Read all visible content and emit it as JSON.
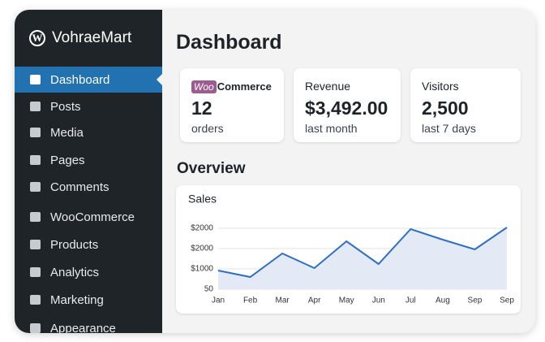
{
  "sidebar": {
    "site_name": "VohraeMart",
    "items": [
      "Dashboard",
      "Posts",
      "Media",
      "Pages",
      "Comments",
      "WooCommerce",
      "Products",
      "Analytics",
      "Marketing",
      "Appearance"
    ]
  },
  "header": {
    "title": "Dashboard"
  },
  "cards": [
    {
      "brand_woo": "Woo",
      "brand_rest": "Commerce",
      "value": "12",
      "sub": "orders"
    },
    {
      "label": "Revenue",
      "value": "$3,492.00",
      "sub": "last month"
    },
    {
      "label": "Visitors",
      "value": "2,500",
      "sub": "last 7 days"
    }
  ],
  "overview": {
    "title": "Overview"
  },
  "chart": {
    "type": "area",
    "title": "Sales",
    "categories": [
      "Jan",
      "Feb",
      "Mar",
      "Apr",
      "May",
      "Jun",
      "Jul",
      "Aug",
      "Sep",
      "Sep"
    ],
    "values": [
      920,
      600,
      1760,
      1040,
      2360,
      1240,
      2960,
      2440,
      1960,
      3040
    ],
    "color": "#2e6fc0",
    "fill": "#e4eaf5",
    "ylim": [
      0,
      3600
    ],
    "ytick_labels": [
      "50",
      "$1000",
      "$2000",
      "$2000"
    ]
  }
}
